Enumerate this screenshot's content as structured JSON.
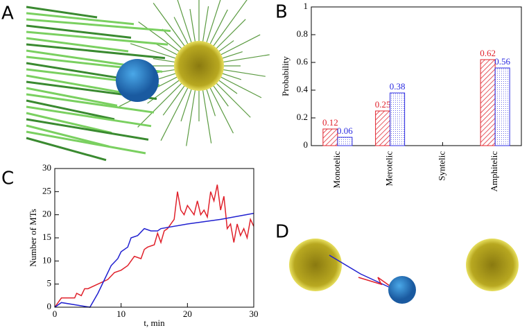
{
  "panel_labels": [
    "A",
    "B",
    "C",
    "D"
  ],
  "chart_data": [
    {
      "type": "bar",
      "ylabel": "Probability",
      "categories": [
        "Monotelic",
        "Merotelic",
        "Syntelic",
        "Amphitelic"
      ],
      "series": [
        {
          "color": "#e0202a",
          "values": [
            0.12,
            0.25,
            null,
            0.62
          ]
        },
        {
          "color": "#2a2ae0",
          "values": [
            0.06,
            0.38,
            null,
            0.56
          ]
        }
      ],
      "ylim": [
        0,
        1
      ],
      "yticks": [
        0,
        0.2,
        0.4,
        0.6,
        0.8,
        1
      ]
    },
    {
      "type": "line",
      "xlabel": "t, min",
      "ylabel": "Number of MTs",
      "xlim": [
        0,
        30
      ],
      "ylim": [
        0,
        30
      ],
      "xticks": [
        0,
        10,
        20,
        30
      ],
      "yticks": [
        0,
        5,
        10,
        15,
        20,
        25,
        30
      ],
      "series": [
        {
          "color": "#e0202a",
          "x": [
            0,
            0.5,
            1,
            3,
            3.3,
            4,
            4.5,
            5,
            8,
            9,
            10,
            11,
            12,
            13,
            13.5,
            14,
            15,
            15.5,
            16,
            16.5,
            17,
            18,
            18.5,
            19,
            19.5,
            20,
            20.5,
            21,
            21.5,
            22,
            22.5,
            23,
            23.5,
            24,
            24.5,
            25,
            25.5,
            26,
            26.5,
            27,
            27.5,
            28,
            28.5,
            29,
            29.5,
            30
          ],
          "values": [
            0,
            1,
            2,
            2,
            3,
            2.5,
            4,
            4,
            6,
            7.5,
            8,
            9,
            11,
            10.5,
            12.5,
            13,
            13.5,
            16,
            14,
            16.5,
            17,
            19,
            25,
            21,
            20,
            22,
            21,
            20,
            23,
            20,
            21,
            19.5,
            25,
            23,
            26.5,
            21,
            24,
            17,
            18,
            14,
            18,
            15.5,
            17,
            15,
            19,
            17.5
          ]
        },
        {
          "color": "#2020d0",
          "x": [
            0,
            1,
            5.3,
            6.5,
            7.5,
            8.5,
            9.5,
            10,
            11,
            11.5,
            12.5,
            13.5,
            14.5,
            15.5,
            16,
            20,
            25,
            30
          ],
          "values": [
            0,
            1,
            0,
            3,
            6,
            9,
            10.5,
            12,
            13,
            15,
            15.5,
            17,
            16.5,
            16.5,
            17,
            18,
            19,
            20.3
          ]
        }
      ]
    }
  ]
}
